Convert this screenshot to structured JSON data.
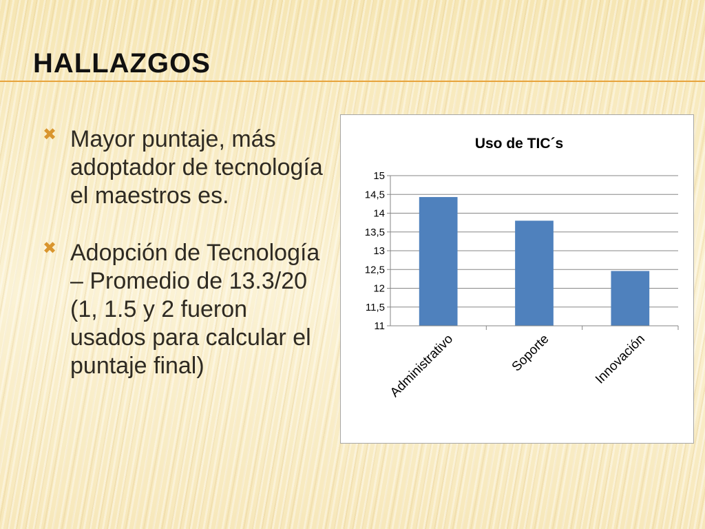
{
  "slide": {
    "title": "HALLAZGOS",
    "bullets": [
      "Mayor puntaje, más adoptador de tecnología el maestros es.",
      "Adopción de Tecnología – Promedio de 13.3/20  (1, 1.5 y 2 fueron usados para calcular el puntaje final)"
    ],
    "bullet_icon": "ornate-x-bullet-icon",
    "accent_color": "#e7a33c",
    "bullet_color": "#d9952e"
  },
  "chart_data": {
    "type": "bar",
    "title": "Uso de TIC´s",
    "categories": [
      "Administrativo",
      "Soporte",
      "Innovación"
    ],
    "values": [
      14.43,
      13.8,
      12.46
    ],
    "ylim": [
      11,
      15
    ],
    "yticks": [
      "11",
      "11,5",
      "12",
      "12,5",
      "13",
      "13,5",
      "14",
      "14,5",
      "15"
    ],
    "bar_color": "#4f81bd",
    "grid": true,
    "legend": "none"
  }
}
